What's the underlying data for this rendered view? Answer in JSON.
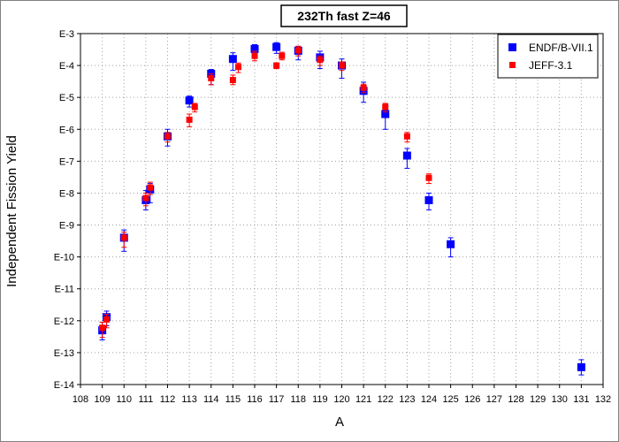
{
  "chart_data": {
    "type": "scatter",
    "title": "232Th fast Z=46",
    "xlabel": "A",
    "ylabel": "Independent Fission Yield",
    "xlim": [
      108,
      132
    ],
    "ylim": [
      1e-14,
      0.001
    ],
    "yscale": "log",
    "x_ticks": [
      108,
      109,
      110,
      111,
      112,
      113,
      114,
      115,
      116,
      117,
      118,
      119,
      120,
      121,
      122,
      123,
      124,
      125,
      126,
      127,
      128,
      129,
      130,
      131,
      132
    ],
    "x_tick_labels": [
      "108",
      "109",
      "110",
      "111",
      "112",
      "113",
      "114",
      "115",
      "116",
      "117",
      "118",
      "119",
      "120",
      "121",
      "122",
      "123",
      "124",
      "125",
      "126",
      "127",
      "128",
      "129",
      "130",
      "131",
      "132"
    ],
    "y_tick_labels": [
      {
        "exp": -3,
        "label": "E-3"
      },
      {
        "exp": -4,
        "label": "E-4"
      },
      {
        "exp": -5,
        "label": "E-5"
      },
      {
        "exp": -6,
        "label": "E-6"
      },
      {
        "exp": -7,
        "label": "E-7"
      },
      {
        "exp": -8,
        "label": "E-8"
      },
      {
        "exp": -9,
        "label": "E-9"
      },
      {
        "exp": -10,
        "label": "E-10"
      },
      {
        "exp": -11,
        "label": "E-11"
      },
      {
        "exp": -12,
        "label": "E-12"
      },
      {
        "exp": -13,
        "label": "E-13"
      },
      {
        "exp": -14,
        "label": "E-14"
      }
    ],
    "grid": true,
    "legend_position": "top-right",
    "series": [
      {
        "name": "ENDF/B-VII.1",
        "color": "#0000ff",
        "marker": "square",
        "points": [
          {
            "x": 109,
            "y": 5e-13,
            "err_lo": 2.5e-13,
            "err_hi": 9e-13
          },
          {
            "x": 109.2,
            "y": 1.3e-12,
            "err_lo": 7e-13,
            "err_hi": 2e-12
          },
          {
            "x": 110,
            "y": 4e-10,
            "err_lo": 1.5e-10,
            "err_hi": 7e-10
          },
          {
            "x": 111,
            "y": 6e-09,
            "err_lo": 3e-09,
            "err_hi": 1.2e-08
          },
          {
            "x": 111.2,
            "y": 1.3e-08,
            "err_lo": 5e-09,
            "err_hi": 2e-08
          },
          {
            "x": 112,
            "y": 6e-07,
            "err_lo": 3e-07,
            "err_hi": 1e-06
          },
          {
            "x": 113,
            "y": 8e-06,
            "err_lo": 5e-06,
            "err_hi": 1.1e-05
          },
          {
            "x": 114,
            "y": 5.5e-05,
            "err_lo": 2.5e-05,
            "err_hi": 7.5e-05
          },
          {
            "x": 115,
            "y": 0.00016,
            "err_lo": 7e-05,
            "err_hi": 0.00025
          },
          {
            "x": 116,
            "y": 0.00033,
            "err_lo": 0.0002,
            "err_hi": 0.00045
          },
          {
            "x": 117,
            "y": 0.00038,
            "err_lo": 0.00024,
            "err_hi": 0.00052
          },
          {
            "x": 118,
            "y": 0.00029,
            "err_lo": 0.00015,
            "err_hi": 0.0004
          },
          {
            "x": 119,
            "y": 0.00018,
            "err_lo": 8e-05,
            "err_hi": 0.00028
          },
          {
            "x": 120,
            "y": 0.0001,
            "err_lo": 4e-05,
            "err_hi": 0.00016
          },
          {
            "x": 121,
            "y": 1.6e-05,
            "err_lo": 7e-06,
            "err_hi": 3e-05
          },
          {
            "x": 122,
            "y": 3e-06,
            "err_lo": 1e-06,
            "err_hi": 5e-06
          },
          {
            "x": 123,
            "y": 1.5e-07,
            "err_lo": 6e-08,
            "err_hi": 2.5e-07
          },
          {
            "x": 124,
            "y": 6e-09,
            "err_lo": 3e-09,
            "err_hi": 1e-08
          },
          {
            "x": 125,
            "y": 2.5e-10,
            "err_lo": 1e-10,
            "err_hi": 4e-10
          },
          {
            "x": 131,
            "y": 3.5e-14,
            "err_lo": 2e-14,
            "err_hi": 6e-14
          }
        ]
      },
      {
        "name": "JEFF-3.1",
        "color": "#ff0000",
        "marker": "square",
        "points": [
          {
            "x": 109,
            "y": 6e-13,
            "err_lo": 3e-13,
            "err_hi": 9e-13
          },
          {
            "x": 109.2,
            "y": 1.1e-12,
            "err_lo": 6e-13,
            "err_hi": 1.6e-12
          },
          {
            "x": 110,
            "y": 4e-10,
            "err_lo": 2e-10,
            "err_hi": 6e-10
          },
          {
            "x": 111,
            "y": 7e-09,
            "err_lo": 4e-09,
            "err_hi": 1e-08
          },
          {
            "x": 111.2,
            "y": 1.5e-08,
            "err_lo": 9e-09,
            "err_hi": 2.2e-08
          },
          {
            "x": 112,
            "y": 6e-07,
            "err_lo": 4e-07,
            "err_hi": 8e-07
          },
          {
            "x": 113,
            "y": 2e-06,
            "err_lo": 1.2e-06,
            "err_hi": 3e-06
          },
          {
            "x": 113.25,
            "y": 5e-06,
            "err_lo": 3.5e-06,
            "err_hi": 6.5e-06
          },
          {
            "x": 114,
            "y": 4e-05,
            "err_lo": 2.5e-05,
            "err_hi": 5.5e-05
          },
          {
            "x": 115,
            "y": 3.5e-05,
            "err_lo": 2.5e-05,
            "err_hi": 5e-05
          },
          {
            "x": 115.25,
            "y": 9e-05,
            "err_lo": 6e-05,
            "err_hi": 0.00012
          },
          {
            "x": 116,
            "y": 0.0002,
            "err_lo": 0.00014,
            "err_hi": 0.00028
          },
          {
            "x": 117,
            "y": 0.0001,
            "err_lo": 8e-05,
            "err_hi": 0.00012
          },
          {
            "x": 117.25,
            "y": 0.0002,
            "err_lo": 0.00015,
            "err_hi": 0.00026
          },
          {
            "x": 118,
            "y": 0.0003,
            "err_lo": 0.0002,
            "err_hi": 0.0004
          },
          {
            "x": 119,
            "y": 0.00015,
            "err_lo": 0.0001,
            "err_hi": 0.0002
          },
          {
            "x": 120,
            "y": 0.0001,
            "err_lo": 7e-05,
            "err_hi": 0.00013
          },
          {
            "x": 121,
            "y": 2e-05,
            "err_lo": 1.4e-05,
            "err_hi": 2.6e-05
          },
          {
            "x": 122,
            "y": 5e-06,
            "err_lo": 3.5e-06,
            "err_hi": 6.5e-06
          },
          {
            "x": 123,
            "y": 6e-07,
            "err_lo": 4e-07,
            "err_hi": 8e-07
          },
          {
            "x": 124,
            "y": 3e-08,
            "err_lo": 2e-08,
            "err_hi": 4e-08
          }
        ]
      }
    ]
  }
}
